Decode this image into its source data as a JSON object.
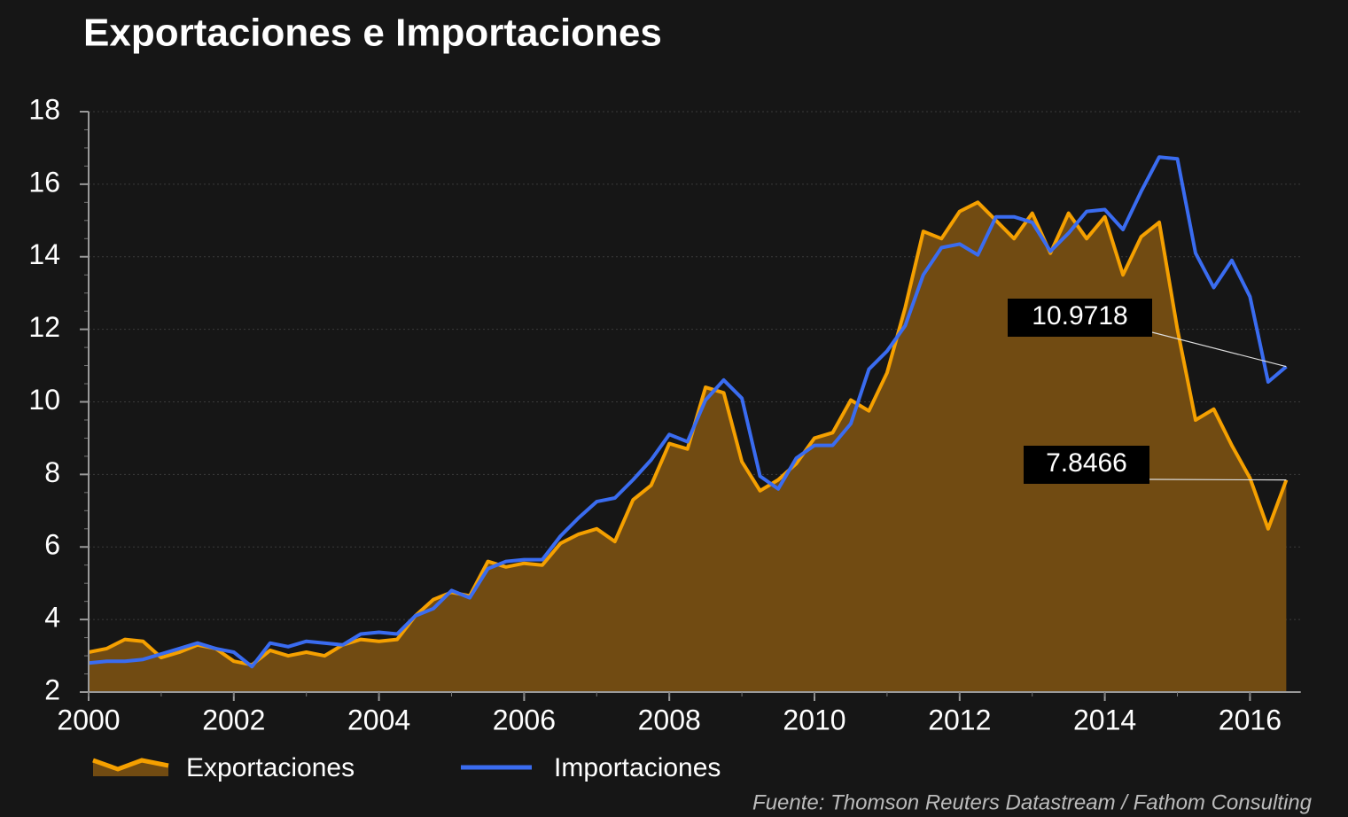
{
  "chart_data": {
    "type": "line",
    "title": "Exportaciones e Importaciones",
    "source": "Fuente: Thomson Reuters Datastream / Fathom Consulting",
    "x": [
      2000,
      2000.25,
      2000.5,
      2000.75,
      2001,
      2001.25,
      2001.5,
      2001.75,
      2002,
      2002.25,
      2002.5,
      2002.75,
      2003,
      2003.25,
      2003.5,
      2003.75,
      2004,
      2004.25,
      2004.5,
      2004.75,
      2005,
      2005.25,
      2005.5,
      2005.75,
      2006,
      2006.25,
      2006.5,
      2006.75,
      2007,
      2007.25,
      2007.5,
      2007.75,
      2008,
      2008.25,
      2008.5,
      2008.75,
      2009,
      2009.25,
      2009.5,
      2009.75,
      2010,
      2010.25,
      2010.5,
      2010.75,
      2011,
      2011.25,
      2011.5,
      2011.75,
      2012,
      2012.25,
      2012.5,
      2012.75,
      2013,
      2013.25,
      2013.5,
      2013.75,
      2014,
      2014.25,
      2014.5,
      2014.75,
      2015,
      2015.25,
      2015.5,
      2015.75,
      2016,
      2016.25,
      2016.5
    ],
    "series": [
      {
        "name": "Exportaciones",
        "color": "#f5a000",
        "fill": "#714b12",
        "area": true,
        "values": [
          3.1,
          3.2,
          3.45,
          3.4,
          2.95,
          3.1,
          3.3,
          3.2,
          2.85,
          2.75,
          3.15,
          3.0,
          3.1,
          3.0,
          3.3,
          3.45,
          3.4,
          3.45,
          4.1,
          4.55,
          4.75,
          4.65,
          5.6,
          5.45,
          5.55,
          5.5,
          6.1,
          6.35,
          6.5,
          6.15,
          7.3,
          7.7,
          8.85,
          8.7,
          10.4,
          10.25,
          8.35,
          7.55,
          7.85,
          8.3,
          9.0,
          9.15,
          10.05,
          9.75,
          10.8,
          12.6,
          14.7,
          14.5,
          15.25,
          15.5,
          15.0,
          14.5,
          15.2,
          14.1,
          15.2,
          14.5,
          15.1,
          13.5,
          14.55,
          14.95,
          12.0,
          9.5,
          9.8,
          8.8,
          7.9,
          6.5,
          7.8466
        ]
      },
      {
        "name": "Importaciones",
        "color": "#3a6cf0",
        "area": false,
        "values": [
          2.8,
          2.85,
          2.85,
          2.9,
          3.05,
          3.2,
          3.35,
          3.2,
          3.1,
          2.7,
          3.35,
          3.25,
          3.4,
          3.35,
          3.3,
          3.6,
          3.65,
          3.6,
          4.1,
          4.3,
          4.8,
          4.6,
          5.4,
          5.6,
          5.65,
          5.65,
          6.3,
          6.8,
          7.25,
          7.35,
          7.85,
          8.4,
          9.1,
          8.9,
          10.05,
          10.6,
          10.1,
          7.95,
          7.6,
          8.45,
          8.8,
          8.8,
          9.4,
          10.9,
          11.4,
          12.1,
          13.5,
          14.25,
          14.35,
          14.05,
          15.1,
          15.1,
          14.95,
          14.15,
          14.65,
          15.25,
          15.3,
          14.75,
          15.8,
          16.75,
          16.7,
          14.1,
          13.15,
          13.9,
          12.9,
          10.55,
          10.9718
        ]
      }
    ],
    "xlim": [
      2000,
      2016.7
    ],
    "xticks": [
      2000,
      2002,
      2004,
      2006,
      2008,
      2010,
      2012,
      2014,
      2016
    ],
    "ylim": [
      2,
      18
    ],
    "yticks": [
      2,
      4,
      6,
      8,
      10,
      12,
      14,
      16,
      18
    ],
    "grid": true,
    "legend": "bottom"
  }
}
